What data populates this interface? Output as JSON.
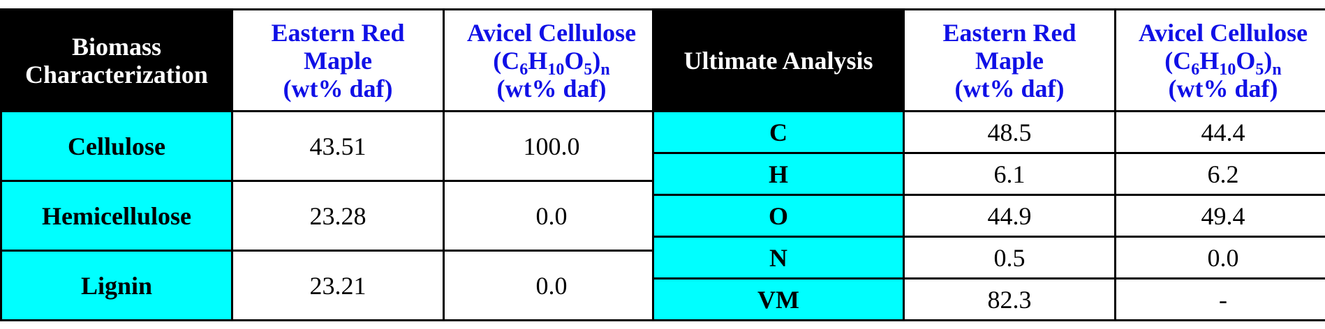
{
  "colors": {
    "header_bg": "#000000",
    "header_text": "#ffffff",
    "col_header_text": "#1010e6",
    "row_label_bg": "#00ffff"
  },
  "chart_data": [
    {
      "type": "table",
      "title": "",
      "columns": [
        "Biomass Characterization",
        "Eastern Red Maple (wt% daf)",
        "Avicel Cellulose (C6H10O5)n (wt% daf)"
      ],
      "rows": [
        {
          "label": "Cellulose",
          "values": [
            "43.51",
            "100.0"
          ]
        },
        {
          "label": "Hemicellulose",
          "values": [
            "23.28",
            "0.0"
          ]
        },
        {
          "label": "Lignin",
          "values": [
            "23.21",
            "0.0"
          ]
        }
      ]
    },
    {
      "type": "table",
      "title": "",
      "columns": [
        "Ultimate Analysis",
        "Eastern Red Maple (wt% daf)",
        "Avicel Cellulose (C6H10O5)n (wt% daf)"
      ],
      "rows": [
        {
          "label": "C",
          "values": [
            "48.5",
            "44.4"
          ]
        },
        {
          "label": "H",
          "values": [
            "6.1",
            "6.2"
          ]
        },
        {
          "label": "O",
          "values": [
            "44.9",
            "49.4"
          ]
        },
        {
          "label": "N",
          "values": [
            "0.5",
            "0.0"
          ]
        },
        {
          "label": "VM",
          "values": [
            "82.3",
            "-"
          ]
        }
      ]
    }
  ],
  "left_table": {
    "header": {
      "col1": [
        "Biomass",
        "Characterization"
      ],
      "col2": [
        "Eastern Red",
        "Maple",
        "(wt% daf)"
      ],
      "col3": {
        "line1": "Avicel Cellulose",
        "formula": {
          "c": "(C",
          "c_sub": "6",
          "h": "H",
          "h_sub": "10",
          "o": "O",
          "o_sub": "5",
          "close": ")",
          "n_sub": "n"
        },
        "line3": "(wt% daf)"
      }
    },
    "rows": [
      {
        "label": "Cellulose",
        "v1": "43.51",
        "v2": "100.0"
      },
      {
        "label": "Hemicellulose",
        "v1": "23.28",
        "v2": "0.0"
      },
      {
        "label": "Lignin",
        "v1": "23.21",
        "v2": "0.0"
      }
    ]
  },
  "right_table": {
    "header": {
      "col1": "Ultimate Analysis",
      "col2": [
        "Eastern Red",
        "Maple",
        "(wt% daf)"
      ],
      "col3": {
        "line1": "Avicel Cellulose",
        "formula": {
          "c": "(C",
          "c_sub": "6",
          "h": "H",
          "h_sub": "10",
          "o": "O",
          "o_sub": "5",
          "close": ")",
          "n_sub": "n"
        },
        "line3": "(wt% daf)"
      }
    },
    "rows": [
      {
        "label": "C",
        "v1": "48.5",
        "v2": "44.4"
      },
      {
        "label": "H",
        "v1": "6.1",
        "v2": "6.2"
      },
      {
        "label": "O",
        "v1": "44.9",
        "v2": "49.4"
      },
      {
        "label": "N",
        "v1": "0.5",
        "v2": "0.0"
      },
      {
        "label": "VM",
        "v1": "82.3",
        "v2": "-"
      }
    ]
  }
}
